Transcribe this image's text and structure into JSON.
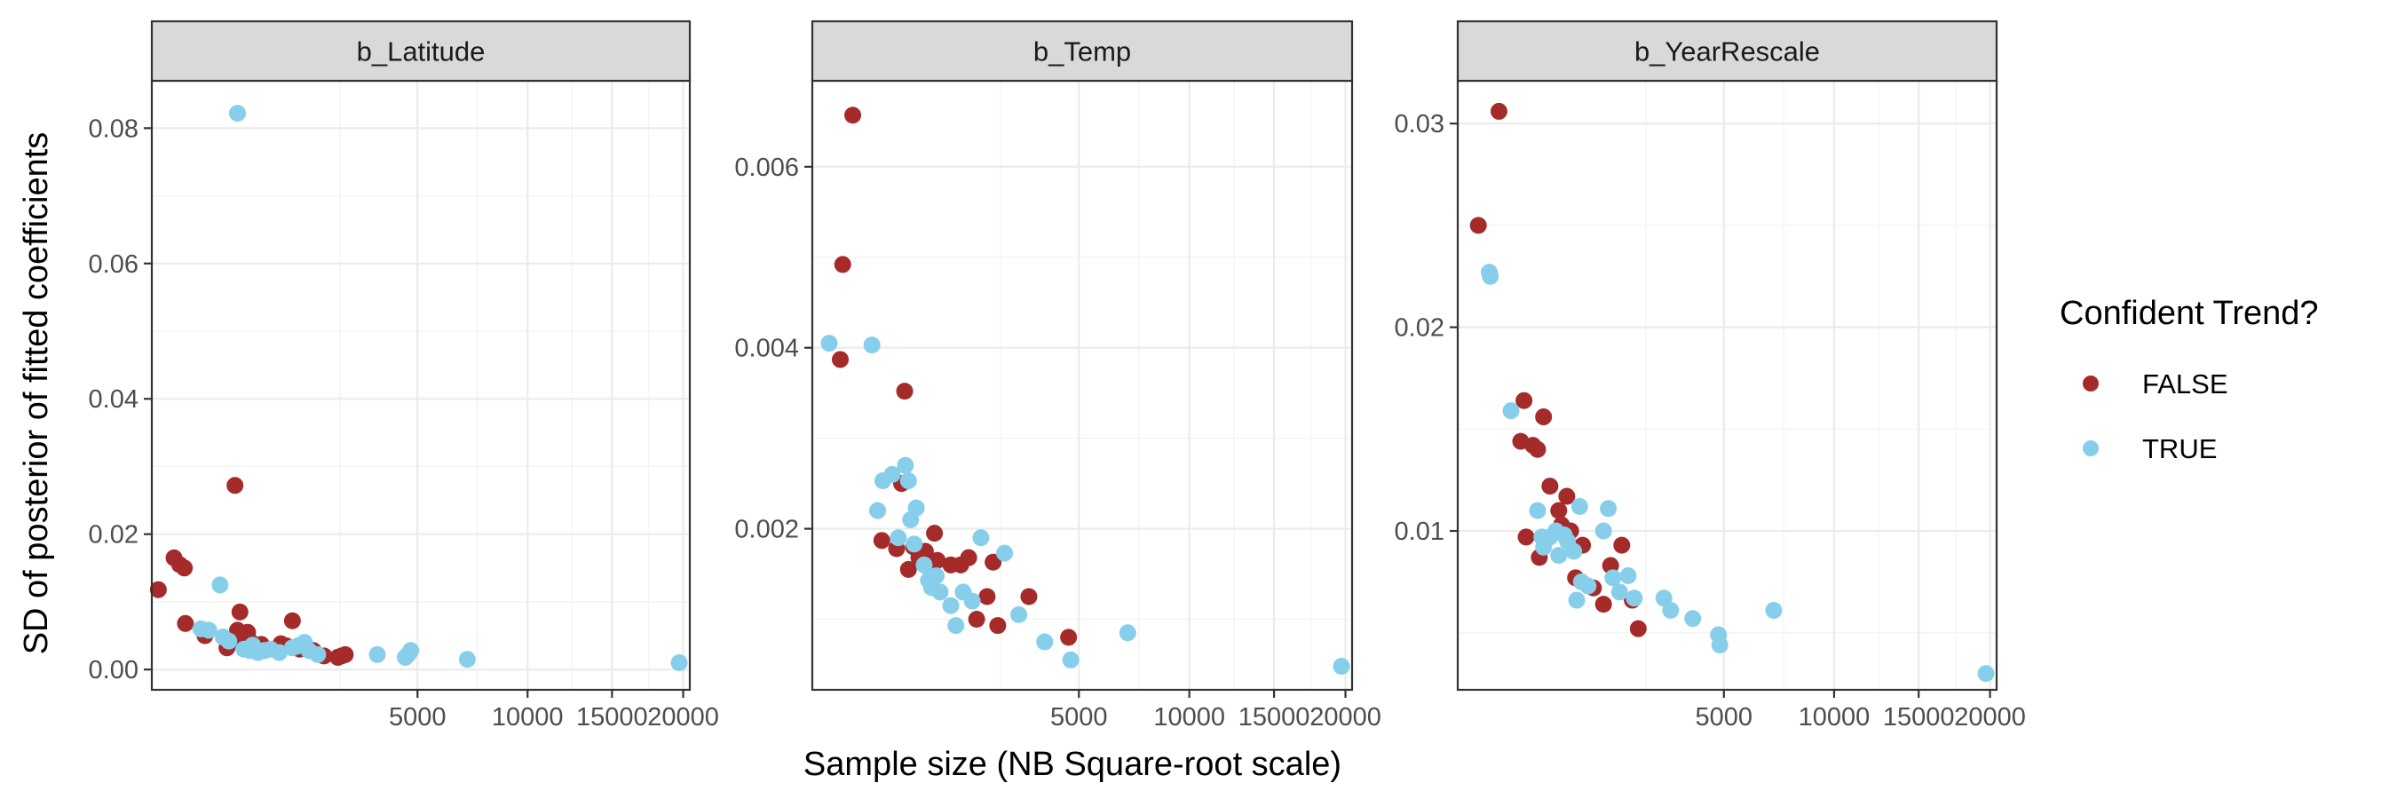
{
  "ylabel": "SD of posterior of fitted coefficients",
  "xlabel": "Sample size (NB Square-root scale)",
  "legend": {
    "title": "Confident Trend?",
    "items": [
      {
        "label": "FALSE",
        "color": "#A52A2A"
      },
      {
        "label": "TRUE",
        "color": "#87CEEB"
      }
    ],
    "position": "right"
  },
  "chart_data": [
    {
      "type": "scatter",
      "title": "b_Latitude",
      "x_scale": "sqrt",
      "xlim": [
        0,
        20500
      ],
      "ylim": [
        -0.003,
        0.087
      ],
      "xticks": [
        5000,
        10000,
        15000,
        20000
      ],
      "xtick_labels": [
        "5000",
        "10000",
        "15000",
        "20000"
      ],
      "yticks": [
        0.0,
        0.02,
        0.04,
        0.06,
        0.08
      ],
      "ytick_labels": [
        "0.00",
        "0.02",
        "0.04",
        "0.06",
        "0.08"
      ],
      "grid": true,
      "series": [
        {
          "name": "FALSE",
          "color": "#A52A2A",
          "points": [
            [
              3,
              0.0118
            ],
            [
              35,
              0.0165
            ],
            [
              55,
              0.0155
            ],
            [
              75,
              0.015
            ],
            [
              80,
              0.0068
            ],
            [
              200,
              0.005
            ],
            [
              400,
              0.0032
            ],
            [
              470,
              0.0045
            ],
            [
              490,
              0.0272
            ],
            [
              520,
              0.0058
            ],
            [
              550,
              0.0085
            ],
            [
              560,
              0.0042
            ],
            [
              650,
              0.0055
            ],
            [
              700,
              0.004
            ],
            [
              760,
              0.0032
            ],
            [
              850,
              0.0037
            ],
            [
              920,
              0.003
            ],
            [
              1180,
              0.0038
            ],
            [
              1280,
              0.0035
            ],
            [
              1400,
              0.0072
            ],
            [
              1550,
              0.003
            ],
            [
              1850,
              0.0028
            ],
            [
              2100,
              0.002
            ],
            [
              2450,
              0.0018
            ],
            [
              2550,
              0.002
            ],
            [
              2650,
              0.0022
            ]
          ]
        },
        {
          "name": "TRUE",
          "color": "#87CEEB",
          "points": [
            [
              520,
              0.0822
            ],
            [
              330,
              0.0125
            ],
            [
              170,
              0.006
            ],
            [
              230,
              0.0058
            ],
            [
              360,
              0.0048
            ],
            [
              420,
              0.0042
            ],
            [
              600,
              0.003
            ],
            [
              680,
              0.0028
            ],
            [
              720,
              0.0036
            ],
            [
              800,
              0.0025
            ],
            [
              900,
              0.0028
            ],
            [
              1000,
              0.003
            ],
            [
              1150,
              0.0025
            ],
            [
              1400,
              0.0032
            ],
            [
              1520,
              0.0035
            ],
            [
              1650,
              0.004
            ],
            [
              1750,
              0.0028
            ],
            [
              1950,
              0.0022
            ],
            [
              3600,
              0.0022
            ],
            [
              4550,
              0.0018
            ],
            [
              4650,
              0.0022
            ],
            [
              4750,
              0.0028
            ],
            [
              7050,
              0.0015
            ],
            [
              19700,
              0.001
            ]
          ]
        }
      ]
    },
    {
      "type": "scatter",
      "title": "b_Temp",
      "x_scale": "sqrt",
      "xlim": [
        0,
        20500
      ],
      "ylim": [
        0.00022,
        0.00695
      ],
      "xticks": [
        5000,
        10000,
        15000,
        20000
      ],
      "xtick_labels": [
        "5000",
        "10000",
        "15000",
        "20000"
      ],
      "yticks": [
        0.002,
        0.004,
        0.006
      ],
      "ytick_labels": [
        "0.002",
        "0.004",
        "0.006"
      ],
      "grid": true,
      "series": [
        {
          "name": "FALSE",
          "color": "#A52A2A",
          "points": [
            [
              115,
              0.00657
            ],
            [
              65,
              0.00492
            ],
            [
              55,
              0.00387
            ],
            [
              600,
              0.00352
            ],
            [
              340,
              0.00187
            ],
            [
              500,
              0.00178
            ],
            [
              560,
              0.0025
            ],
            [
              650,
              0.00155
            ],
            [
              720,
              0.0018
            ],
            [
              800,
              0.00168
            ],
            [
              900,
              0.00175
            ],
            [
              1000,
              0.0015
            ],
            [
              1050,
              0.00195
            ],
            [
              1100,
              0.00165
            ],
            [
              1350,
              0.0016
            ],
            [
              1550,
              0.0016
            ],
            [
              1720,
              0.00168
            ],
            [
              1900,
              0.001
            ],
            [
              2150,
              0.00125
            ],
            [
              2300,
              0.00163
            ],
            [
              2420,
              0.00093
            ],
            [
              3300,
              0.00125
            ],
            [
              4620,
              0.0008
            ]
          ]
        },
        {
          "name": "TRUE",
          "color": "#87CEEB",
          "points": [
            [
              20,
              0.00405
            ],
            [
              250,
              0.00403
            ],
            [
              350,
              0.00253
            ],
            [
              300,
              0.0022
            ],
            [
              450,
              0.0026
            ],
            [
              520,
              0.0019
            ],
            [
              610,
              0.0027
            ],
            [
              650,
              0.00253
            ],
            [
              680,
              0.0021
            ],
            [
              760,
              0.00223
            ],
            [
              730,
              0.00183
            ],
            [
              880,
              0.0016
            ],
            [
              950,
              0.00143
            ],
            [
              1000,
              0.00135
            ],
            [
              1080,
              0.00148
            ],
            [
              1150,
              0.0013
            ],
            [
              1350,
              0.00115
            ],
            [
              1450,
              0.00093
            ],
            [
              1600,
              0.0013
            ],
            [
              1800,
              0.0012
            ],
            [
              2000,
              0.0019
            ],
            [
              2600,
              0.00173
            ],
            [
              3000,
              0.00105
            ],
            [
              3800,
              0.00075
            ],
            [
              4700,
              0.00055
            ],
            [
              7000,
              0.00085
            ],
            [
              19700,
              0.00048
            ]
          ]
        }
      ]
    },
    {
      "type": "scatter",
      "title": "b_YearRescale",
      "x_scale": "sqrt",
      "xlim": [
        0,
        20500
      ],
      "ylim": [
        0.0022,
        0.0321
      ],
      "xticks": [
        5000,
        10000,
        15000,
        20000
      ],
      "xtick_labels": [
        "5000",
        "10000",
        "15000",
        "20000"
      ],
      "yticks": [
        0.01,
        0.02,
        0.03
      ],
      "ytick_labels": [
        "0.01",
        "0.02",
        "0.03"
      ],
      "grid": true,
      "series": [
        {
          "name": "FALSE",
          "color": "#A52A2A",
          "points": [
            [
              30,
              0.025
            ],
            [
              120,
              0.0306
            ],
            [
              310,
              0.0164
            ],
            [
              280,
              0.0144
            ],
            [
              330,
              0.0097
            ],
            [
              400,
              0.0142
            ],
            [
              450,
              0.014
            ],
            [
              470,
              0.0087
            ],
            [
              520,
              0.0156
            ],
            [
              600,
              0.0122
            ],
            [
              720,
              0.011
            ],
            [
              760,
              0.0103
            ],
            [
              840,
              0.0117
            ],
            [
              900,
              0.01
            ],
            [
              980,
              0.0077
            ],
            [
              1100,
              0.0093
            ],
            [
              1300,
              0.0072
            ],
            [
              1500,
              0.0064
            ],
            [
              1650,
              0.0083
            ],
            [
              1900,
              0.0093
            ],
            [
              2150,
              0.0066
            ],
            [
              2300,
              0.0052
            ]
          ]
        },
        {
          "name": "TRUE",
          "color": "#87CEEB",
          "points": [
            [
              70,
              0.0227
            ],
            [
              75,
              0.0225
            ],
            [
              200,
              0.0159
            ],
            [
              450,
              0.011
            ],
            [
              500,
              0.0097
            ],
            [
              520,
              0.0092
            ],
            [
              600,
              0.0097
            ],
            [
              680,
              0.01
            ],
            [
              720,
              0.0088
            ],
            [
              800,
              0.0098
            ],
            [
              850,
              0.0095
            ],
            [
              950,
              0.009
            ],
            [
              1000,
              0.0066
            ],
            [
              1050,
              0.0112
            ],
            [
              1080,
              0.0075
            ],
            [
              1200,
              0.0073
            ],
            [
              1500,
              0.01
            ],
            [
              1600,
              0.0111
            ],
            [
              1700,
              0.0077
            ],
            [
              1850,
              0.007
            ],
            [
              2050,
              0.0078
            ],
            [
              2200,
              0.0067
            ],
            [
              3000,
              0.0067
            ],
            [
              3200,
              0.0061
            ],
            [
              3900,
              0.0057
            ],
            [
              4800,
              0.0049
            ],
            [
              4850,
              0.0044
            ],
            [
              7050,
              0.0061
            ],
            [
              19700,
              0.003
            ]
          ]
        }
      ]
    }
  ]
}
